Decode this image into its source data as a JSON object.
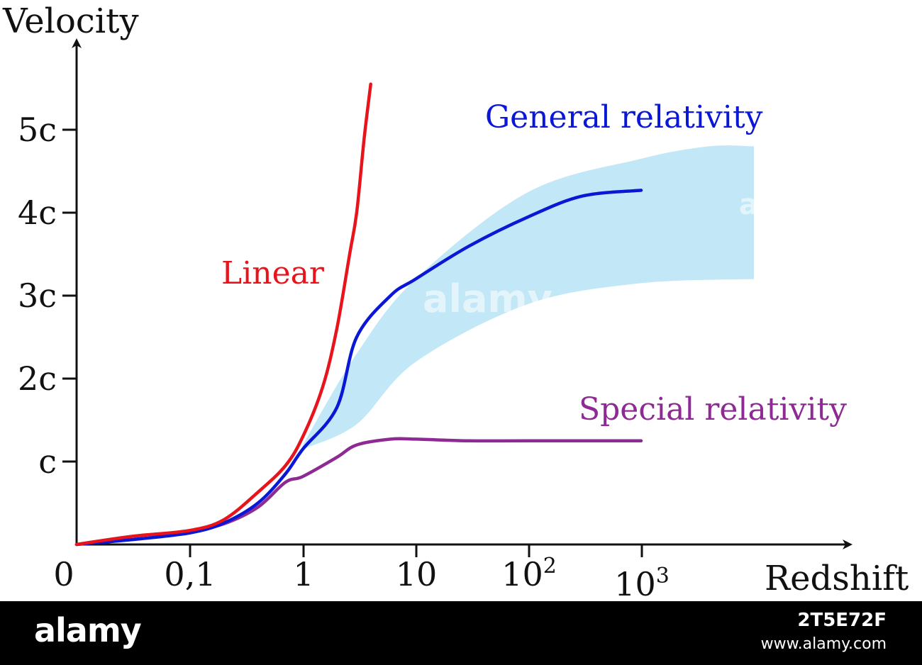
{
  "chart_data": {
    "type": "line",
    "xlabel": "Redshift",
    "ylabel": "Velocity",
    "x_ticks": [
      {
        "value": 0,
        "label": "0",
        "sup": ""
      },
      {
        "value": 0.1,
        "label": "0,1",
        "sup": ""
      },
      {
        "value": 1,
        "label": "1",
        "sup": ""
      },
      {
        "value": 10,
        "label": "10",
        "sup": ""
      },
      {
        "value": 100,
        "label": "10",
        "sup": "2"
      },
      {
        "value": 1000,
        "label": "10",
        "sup": "3"
      }
    ],
    "y_ticks": [
      {
        "value": 1,
        "label": "c"
      },
      {
        "value": 2,
        "label": "2c"
      },
      {
        "value": 3,
        "label": "3c"
      },
      {
        "value": 4,
        "label": "4c"
      },
      {
        "value": 5,
        "label": "5c"
      }
    ],
    "ylim": [
      0,
      5.8
    ],
    "series": [
      {
        "name": "Linear",
        "color": "#e8141c",
        "points": [
          [
            0,
            0
          ],
          [
            0.05,
            0.1
          ],
          [
            0.1,
            0.17
          ],
          [
            0.2,
            0.3
          ],
          [
            0.4,
            0.63
          ],
          [
            0.7,
            0.95
          ],
          [
            1,
            1.3
          ],
          [
            1.5,
            1.9
          ],
          [
            2,
            2.6
          ],
          [
            2.6,
            3.5
          ],
          [
            3,
            4.0
          ],
          [
            3.5,
            4.9
          ],
          [
            4,
            5.55
          ]
        ]
      },
      {
        "name": "General relativity",
        "color": "#0a18d6",
        "points": [
          [
            0,
            0
          ],
          [
            0.05,
            0.06
          ],
          [
            0.1,
            0.14
          ],
          [
            0.2,
            0.26
          ],
          [
            0.4,
            0.5
          ],
          [
            0.7,
            0.85
          ],
          [
            1,
            1.15
          ],
          [
            2,
            1.65
          ],
          [
            3,
            2.5
          ],
          [
            6,
            3.0
          ],
          [
            10,
            3.2
          ],
          [
            30,
            3.6
          ],
          [
            100,
            3.95
          ],
          [
            300,
            4.2
          ],
          [
            1000,
            4.27
          ]
        ]
      },
      {
        "name": "Special relativity",
        "color": "#8d2a93",
        "points": [
          [
            0,
            0
          ],
          [
            0.05,
            0.1
          ],
          [
            0.1,
            0.16
          ],
          [
            0.2,
            0.25
          ],
          [
            0.4,
            0.45
          ],
          [
            0.7,
            0.75
          ],
          [
            1,
            0.82
          ],
          [
            2,
            1.05
          ],
          [
            3,
            1.2
          ],
          [
            6,
            1.27
          ],
          [
            10,
            1.27
          ],
          [
            30,
            1.25
          ],
          [
            100,
            1.25
          ],
          [
            1000,
            1.25
          ]
        ]
      }
    ],
    "band": {
      "color": "#c2e8f8",
      "upper": [
        [
          1,
          1.2
        ],
        [
          3,
          2.3
        ],
        [
          10,
          3.2
        ],
        [
          100,
          4.25
        ],
        [
          1000,
          4.65
        ],
        [
          4000,
          4.8
        ],
        [
          10000,
          4.8
        ]
      ],
      "lower": [
        [
          10000,
          3.2
        ],
        [
          1000,
          3.15
        ],
        [
          100,
          2.9
        ],
        [
          10,
          2.2
        ],
        [
          3,
          1.45
        ],
        [
          1,
          1.15
        ]
      ]
    }
  },
  "watermark": {
    "logo": "alamy",
    "image_id": "2T5E72F",
    "url": "www.alamy.com",
    "overlay": "alamy"
  }
}
